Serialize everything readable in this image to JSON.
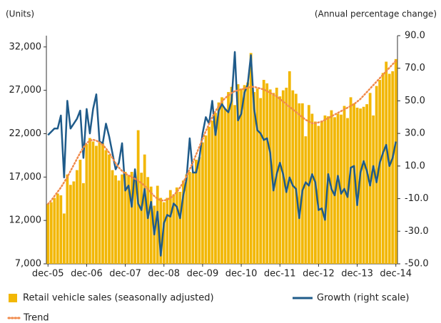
{
  "chart_data": {
    "type": "combo",
    "y_label": "(Units)",
    "y2_label": "(Annual percentage change)",
    "categories": [
      "dec-05",
      null,
      null,
      null,
      null,
      null,
      null,
      null,
      null,
      null,
      null,
      null,
      "dec-06",
      null,
      null,
      null,
      null,
      null,
      null,
      null,
      null,
      null,
      null,
      null,
      "dec-07",
      null,
      null,
      null,
      null,
      null,
      null,
      null,
      null,
      null,
      null,
      null,
      "dec-08",
      null,
      null,
      null,
      null,
      null,
      null,
      null,
      null,
      null,
      null,
      null,
      "dec-09",
      null,
      null,
      null,
      null,
      null,
      null,
      null,
      null,
      null,
      null,
      null,
      "dec-10",
      null,
      null,
      null,
      null,
      null,
      null,
      null,
      null,
      null,
      null,
      null,
      "dec-11",
      null,
      null,
      null,
      null,
      null,
      null,
      null,
      null,
      null,
      null,
      null,
      "dec-12",
      null,
      null,
      null,
      null,
      null,
      null,
      null,
      null,
      null,
      null,
      null,
      "dec-13",
      null,
      null,
      null,
      null,
      null,
      null,
      null,
      null,
      null,
      null,
      null,
      "dec-14"
    ],
    "series": [
      {
        "name": "Retail vehicle sales (seasonally adjusted)",
        "type": "bar",
        "color": "#f2b705",
        "values": [
          13900,
          14100,
          14600,
          15100,
          14900,
          12800,
          17300,
          16100,
          16500,
          17800,
          19000,
          16300,
          20800,
          21500,
          21100,
          20600,
          21000,
          20900,
          20100,
          19600,
          17800,
          17200,
          16600,
          17300,
          17600,
          17200,
          17600,
          16900,
          22400,
          17500,
          19600,
          17000,
          15900,
          13700,
          16000,
          14600,
          14100,
          14600,
          15500,
          15000,
          15800,
          15300,
          16600,
          17300,
          17600,
          17500,
          19000,
          19300,
          21000,
          21800,
          22800,
          23500,
          24400,
          25600,
          26200,
          24900,
          26800,
          27400,
          25300,
          27700,
          27200,
          27600,
          27900,
          31300,
          26800,
          27200,
          26100,
          28200,
          27800,
          27100,
          26700,
          27300,
          26300,
          27000,
          27300,
          29200,
          27000,
          26600,
          25500,
          25500,
          21700,
          25300,
          24300,
          23400,
          22900,
          23500,
          24100,
          24000,
          24700,
          23900,
          24300,
          24200,
          25200,
          23800,
          26200,
          25500,
          25000,
          24900,
          25100,
          25400,
          26700,
          24100,
          27500,
          28200,
          29000,
          30300,
          28900,
          29200,
          30600
        ]
      },
      {
        "name": "Growth (right scale)",
        "type": "line",
        "axis": "y2",
        "color": "#1f5b8a",
        "values": [
          29,
          31,
          33,
          33,
          41,
          3,
          50,
          33,
          36,
          39,
          44,
          15,
          45,
          30,
          45,
          54,
          25,
          24,
          36,
          28,
          18,
          8,
          12,
          24,
          -5,
          -2,
          -15,
          8,
          -13,
          -17,
          -4,
          -22,
          -12,
          -32,
          -18,
          -45,
          -25,
          -20,
          -21,
          -13,
          -15,
          -22,
          -8,
          2,
          27,
          6,
          6,
          15,
          30,
          40,
          36,
          50,
          29,
          44,
          48,
          45,
          43,
          50,
          80,
          38,
          42,
          55,
          60,
          78,
          45,
          32,
          30,
          26,
          27,
          18,
          -5,
          5,
          12,
          5,
          -6,
          3,
          -2,
          -4,
          -22,
          -5,
          0,
          -2,
          5,
          0,
          -17,
          -16,
          -23,
          5,
          -4,
          -8,
          4,
          -7,
          -4,
          -9,
          9,
          10,
          -14,
          6,
          13,
          7,
          -2,
          10,
          0,
          12,
          18,
          23,
          10,
          15,
          25
        ]
      },
      {
        "name": "Trend",
        "type": "line",
        "style": "dotted",
        "color": "#f08a4b",
        "values": [
          13900,
          14300,
          14800,
          15300,
          15800,
          16400,
          17000,
          17700,
          18400,
          19100,
          19800,
          20400,
          20900,
          21200,
          21300,
          21200,
          21000,
          20700,
          20300,
          19800,
          19200,
          18600,
          18100,
          17700,
          17400,
          17200,
          17000,
          16800,
          16600,
          16300,
          16000,
          15600,
          15200,
          14800,
          14500,
          14300,
          14300,
          14400,
          14600,
          14900,
          15300,
          15800,
          16400,
          17100,
          17900,
          18700,
          19600,
          20500,
          21400,
          22300,
          23100,
          23900,
          24600,
          25200,
          25700,
          26100,
          26400,
          26700,
          26900,
          27000,
          27100,
          27200,
          27300,
          27400,
          27400,
          27300,
          27200,
          27100,
          26900,
          26700,
          26500,
          26300,
          26000,
          25700,
          25400,
          25100,
          24800,
          24500,
          24200,
          23900,
          23600,
          23400,
          23200,
          23200,
          23300,
          23400,
          23600,
          23800,
          24000,
          24200,
          24400,
          24600,
          24800,
          25000,
          25200,
          25400,
          25700,
          26000,
          26400,
          26800,
          27200,
          27600,
          28000,
          28400,
          28800,
          29200,
          29600,
          30000,
          30400
        ]
      }
    ],
    "ylim": [
      7000,
      33300
    ],
    "yticks": [
      {
        "value": 7000,
        "label": "7,000"
      },
      {
        "value": 12000,
        "label": "12,000"
      },
      {
        "value": 17000,
        "label": "17,000"
      },
      {
        "value": 22000,
        "label": "22,000"
      },
      {
        "value": 27000,
        "label": "27,000"
      },
      {
        "value": 32000,
        "label": "32,000"
      }
    ],
    "y2lim": [
      -50,
      90
    ],
    "y2ticks": [
      {
        "value": -50,
        "label": "-50.0"
      },
      {
        "value": -30,
        "label": "-30.0"
      },
      {
        "value": -10,
        "label": "-10.0"
      },
      {
        "value": 10,
        "label": "10.0"
      },
      {
        "value": 30,
        "label": "30.0"
      },
      {
        "value": 50,
        "label": "50.0"
      },
      {
        "value": 70,
        "label": "70.0"
      },
      {
        "value": 90,
        "label": "90.0"
      }
    ]
  }
}
